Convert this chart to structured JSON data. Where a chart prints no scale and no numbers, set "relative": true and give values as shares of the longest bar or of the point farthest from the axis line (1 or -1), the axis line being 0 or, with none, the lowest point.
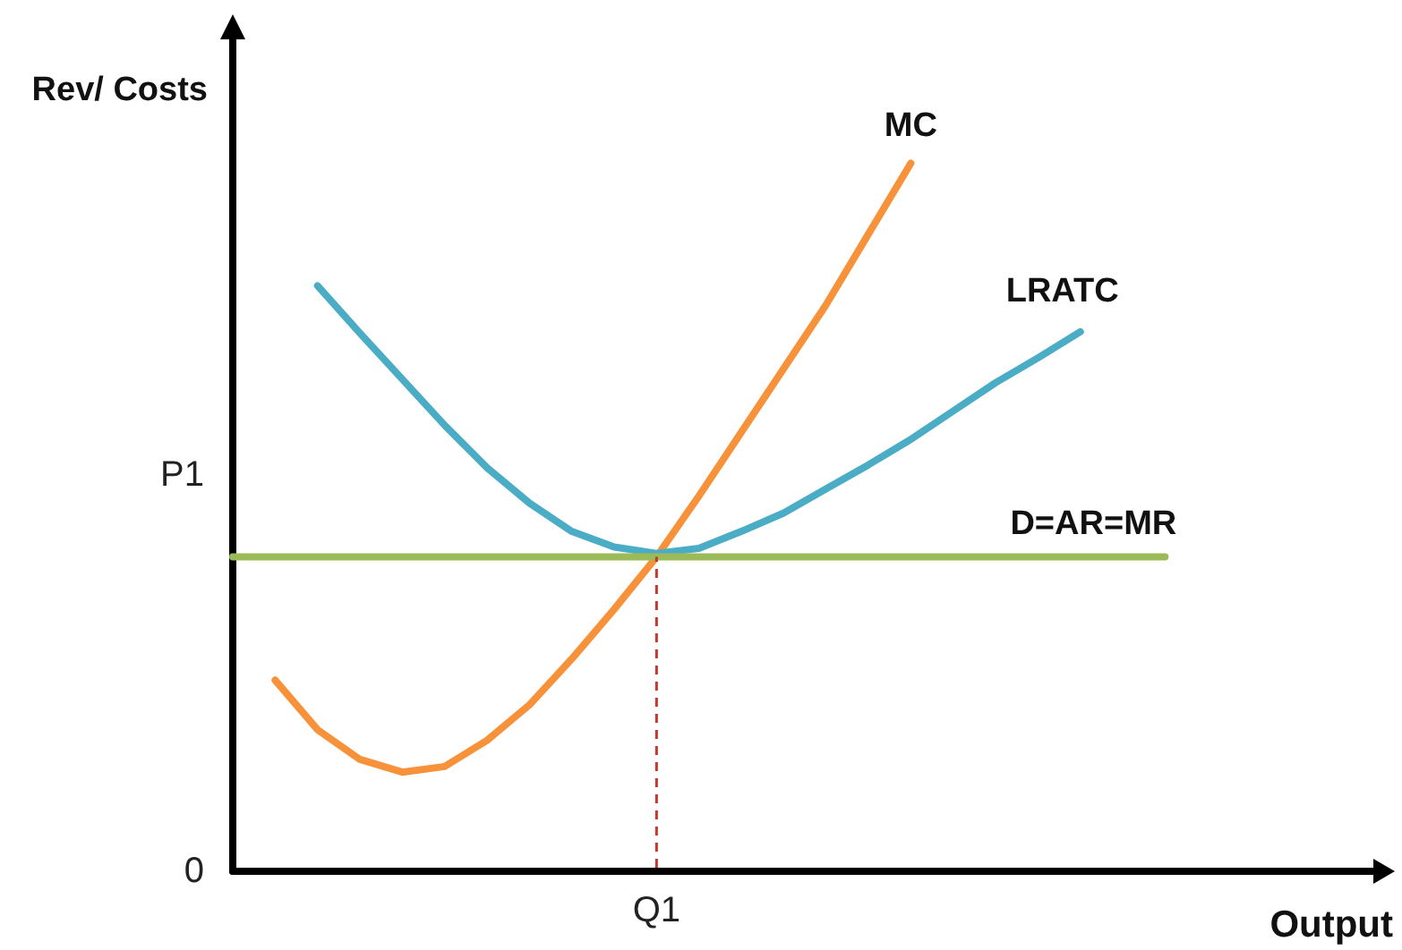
{
  "chart_data": {
    "type": "line",
    "relative": true,
    "xlabel": "Output",
    "ylabel": "Rev/ Costs",
    "legend": false,
    "grid": false,
    "marker": "none",
    "line_style": "solid",
    "categories": [
      null,
      null,
      null,
      null,
      null,
      null,
      null,
      null,
      null,
      null,
      null,
      null,
      null,
      null,
      null,
      null,
      null,
      null,
      null,
      null,
      null,
      null,
      null,
      null,
      null,
      null,
      null,
      null
    ],
    "series": [
      {
        "name": "MC",
        "color": "#f7923a",
        "values": [
          null,
          0.27,
          0.2,
          0.158,
          0.14,
          0.148,
          0.185,
          0.235,
          0.3,
          0.37,
          0.444,
          0.53,
          0.62,
          0.71,
          0.8,
          0.9,
          1,
          null,
          null,
          null,
          null,
          null,
          null,
          null,
          null,
          null,
          null,
          null
        ]
      },
      {
        "name": "LRATC",
        "color": "#4bacc6",
        "values": [
          null,
          null,
          0.827,
          0.76,
          0.695,
          0.63,
          0.57,
          0.52,
          0.48,
          0.458,
          0.449,
          0.456,
          0.48,
          0.506,
          0.54,
          0.574,
          0.61,
          0.65,
          0.69,
          0.725,
          0.762,
          null,
          null,
          null,
          null,
          null,
          null,
          null
        ]
      },
      {
        "name": "D=AR=MR",
        "color": "#9bbb59",
        "values": [
          0.444,
          0.444,
          0.444,
          0.444,
          0.444,
          0.444,
          0.444,
          0.444,
          0.444,
          0.444,
          0.444,
          0.444,
          0.444,
          0.444,
          0.444,
          0.444,
          0.444,
          0.444,
          0.444,
          0.444,
          0.444,
          0.444,
          0.444,
          null,
          null,
          null,
          null,
          null
        ]
      }
    ],
    "annotations": [
      "0",
      "P1",
      "Q1"
    ]
  }
}
